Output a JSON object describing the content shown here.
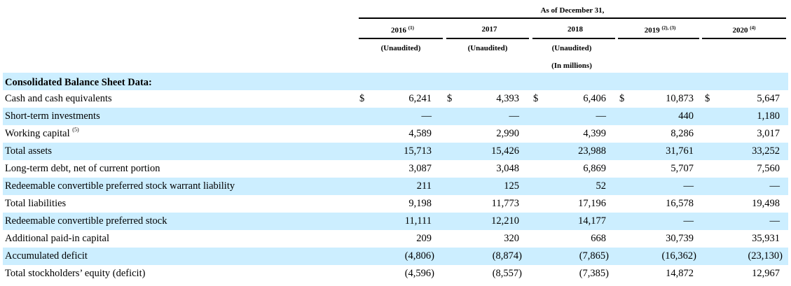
{
  "header": {
    "caption": "As of December 31,",
    "years": [
      {
        "year": "2016",
        "note": "(1)"
      },
      {
        "year": "2017",
        "note": ""
      },
      {
        "year": "2018",
        "note": ""
      },
      {
        "year": "2019",
        "note": "(2), (3)"
      },
      {
        "year": "2020",
        "note": "(4)"
      }
    ],
    "unaudited": [
      "(Unaudited)",
      "(Unaudited)",
      "(Unaudited)"
    ],
    "units": "(In millions)"
  },
  "section_title": "Consolidated Balance Sheet Data:",
  "rows": [
    {
      "label": "Cash and cash equivalents",
      "note": "",
      "dollar": true,
      "values": [
        "6,241",
        "4,393",
        "6,406",
        "10,873",
        "5,647"
      ]
    },
    {
      "label": "Short-term investments",
      "note": "",
      "dollar": false,
      "values": [
        "—",
        "—",
        "—",
        "440",
        "1,180"
      ]
    },
    {
      "label": "Working capital",
      "note": "(5)",
      "dollar": false,
      "values": [
        "4,589",
        "2,990",
        "4,399",
        "8,286",
        "3,017"
      ]
    },
    {
      "label": "Total assets",
      "note": "",
      "dollar": false,
      "values": [
        "15,713",
        "15,426",
        "23,988",
        "31,761",
        "33,252"
      ]
    },
    {
      "label": "Long-term debt, net of current portion",
      "note": "",
      "dollar": false,
      "values": [
        "3,087",
        "3,048",
        "6,869",
        "5,707",
        "7,560"
      ]
    },
    {
      "label": "Redeemable convertible preferred stock warrant liability",
      "note": "",
      "dollar": false,
      "values": [
        "211",
        "125",
        "52",
        "—",
        "—"
      ]
    },
    {
      "label": "Total liabilities",
      "note": "",
      "dollar": false,
      "values": [
        "9,198",
        "11,773",
        "17,196",
        "16,578",
        "19,498"
      ]
    },
    {
      "label": "Redeemable convertible preferred stock",
      "note": "",
      "dollar": false,
      "values": [
        "11,111",
        "12,210",
        "14,177",
        "—",
        "—"
      ]
    },
    {
      "label": "Additional paid-in capital",
      "note": "",
      "dollar": false,
      "values": [
        "209",
        "320",
        "668",
        "30,739",
        "35,931"
      ]
    },
    {
      "label": "Accumulated deficit",
      "note": "",
      "dollar": false,
      "values": [
        "(4,806)",
        "(8,874)",
        "(7,865)",
        "(16,362)",
        "(23,130)"
      ]
    },
    {
      "label": "Total stockholders’ equity (deficit)",
      "note": "",
      "dollar": false,
      "values": [
        "(4,596)",
        "(8,557)",
        "(7,385)",
        "14,872",
        "12,967"
      ]
    }
  ],
  "currency_symbol": "$",
  "colors": {
    "band": "#cceeff",
    "text": "#000000"
  }
}
